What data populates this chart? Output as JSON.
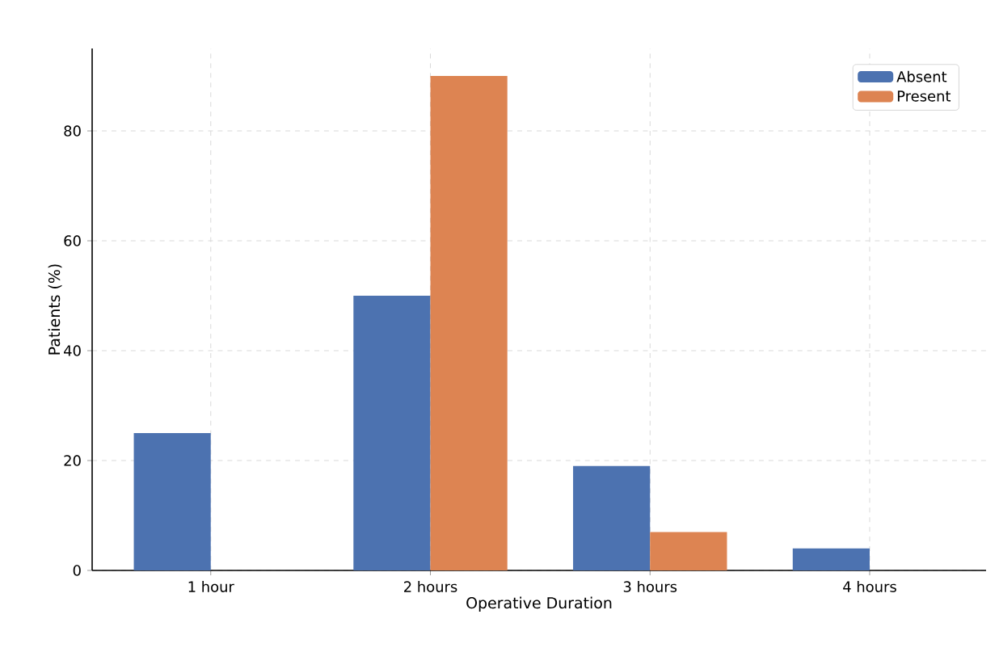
{
  "chart_data": {
    "type": "bar",
    "xlabel": "Operative Duration",
    "ylabel": "Patients (%)",
    "categories": [
      "1 hour",
      "2 hours",
      "3 hours",
      "4 hours"
    ],
    "series": [
      {
        "name": "Absent",
        "color": "#4c72b0",
        "values": [
          25,
          50,
          19,
          4
        ]
      },
      {
        "name": "Present",
        "color": "#dd8452",
        "values": [
          0,
          90,
          7,
          0
        ]
      }
    ],
    "ylim": [
      0,
      95
    ],
    "yticks": [
      0,
      20,
      40,
      60,
      80
    ],
    "grid": true,
    "legend": "top right"
  }
}
